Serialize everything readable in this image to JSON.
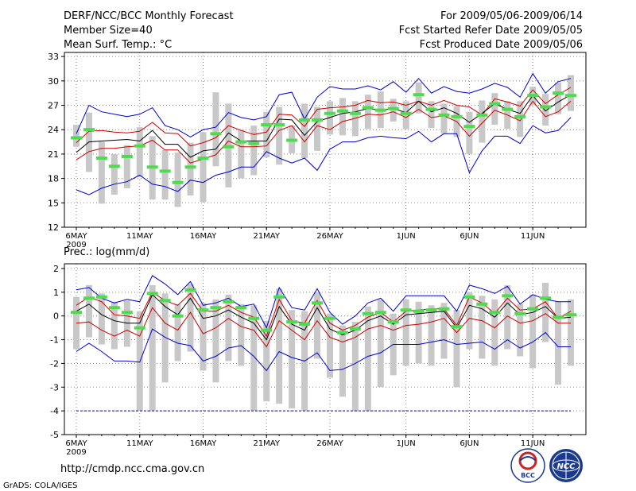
{
  "header": {
    "title": "DERF/NCC/BCC Monthly Forecast",
    "member_size": "Member Size=40",
    "variable": "Mean Surf. Temp.: °C",
    "period": "For 2009/05/06-2009/06/14",
    "started": "Fcst Started Refer Date 2009/05/05",
    "produced": "Fcst Produced Date 2009/05/06"
  },
  "footer": {
    "url": "http://cmdp.ncc.cma.gov.cn",
    "grads": "GrADS: COLA/IGES",
    "logo_bcc": "BCC",
    "logo_ncc": "NCC"
  },
  "colors": {
    "box": "#c8c8c8",
    "median": "#4ddc4d",
    "mean": "#000000",
    "sigma": "#cc0000",
    "extreme": "#0000cc",
    "grid": "#888888"
  },
  "chart_data": [
    {
      "type": "line",
      "title": "Mean Surf. Temp.: °C",
      "xlabel": "",
      "ylabel": "°C",
      "ylim": [
        12,
        33.5
      ],
      "yticks": [
        12,
        15,
        18,
        21,
        24,
        27,
        30,
        33
      ],
      "xtick_labels": [
        "6MAY",
        "11MAY",
        "16MAY",
        "21MAY",
        "26MAY",
        "1JUN",
        "6JUN",
        "11JUN"
      ],
      "xtick_days": [
        0,
        5,
        10,
        15,
        20,
        26,
        31,
        36
      ],
      "year_label": "2009",
      "series": [
        {
          "name": "max",
          "values": [
            16.6,
            16.0,
            16.8,
            17.3,
            17.6,
            18.4,
            17.3,
            17.0,
            16.4,
            17.8,
            17.5,
            18.4,
            18.8,
            19.4,
            19.4,
            21.3,
            20.5,
            19.9,
            20.5,
            19.0,
            21.6,
            22.5,
            22.5,
            23.0,
            23.2,
            23.0,
            22.9,
            23.8,
            22.5,
            23.5,
            23.5,
            18.7,
            21.4,
            23.2,
            23.2,
            22.3,
            24.5,
            23.6,
            23.9,
            25.5
          ]
        },
        {
          "name": "max_sigma_upper",
          "values": [
            22.4,
            23.8,
            23.9,
            23.7,
            23.6,
            23.8,
            24.9,
            23.6,
            23.5,
            22.0,
            22.4,
            23.0,
            24.5,
            23.9,
            23.4,
            23.7,
            25.9,
            25.8,
            24.4,
            26.5,
            26.7,
            26.8,
            27.0,
            27.6,
            27.3,
            27.4,
            27.0,
            27.5,
            27.0,
            27.6,
            27.0,
            26.8,
            25.8,
            27.8,
            27.4,
            26.9,
            28.9,
            27.2,
            28.3,
            29.2
          ]
        },
        {
          "name": "mean",
          "values": [
            21.2,
            22.5,
            22.6,
            22.7,
            22.8,
            22.6,
            23.9,
            22.2,
            22.2,
            20.6,
            21.4,
            21.6,
            23.6,
            22.6,
            22.6,
            22.6,
            25.3,
            25.2,
            23.3,
            25.0,
            25.5,
            26.0,
            26.2,
            26.6,
            26.4,
            26.6,
            26.1,
            27.5,
            26.2,
            26.7,
            26.0,
            24.9,
            26.0,
            27.2,
            26.5,
            26.0,
            28.2,
            26.3,
            27.4,
            28.3
          ]
        },
        {
          "name": "min_sigma_lower",
          "values": [
            20.3,
            21.3,
            21.7,
            21.7,
            21.9,
            22.0,
            22.7,
            21.5,
            21.5,
            19.9,
            20.4,
            20.9,
            22.6,
            21.9,
            21.9,
            22.0,
            23.9,
            24.5,
            22.5,
            24.5,
            24.0,
            25.0,
            25.4,
            25.9,
            25.8,
            26.2,
            25.5,
            26.5,
            25.5,
            25.7,
            25.0,
            23.2,
            24.8,
            26.4,
            25.8,
            25.1,
            27.5,
            25.6,
            26.2,
            27.5
          ]
        },
        {
          "name": "min_extreme",
          "values": [
            16.6,
            16.0,
            16.8,
            17.3,
            17.6,
            18.4,
            17.3,
            17.0,
            16.4,
            17.8,
            17.5,
            18.4,
            18.8,
            19.4,
            19.4,
            21.3,
            20.5,
            19.9,
            20.5,
            19.0,
            21.6,
            22.5,
            22.5,
            23.0,
            23.2,
            23.0,
            22.9,
            23.8,
            22.5,
            23.5,
            23.5,
            18.7,
            21.4,
            23.2,
            23.2,
            22.3,
            24.5,
            23.6,
            23.9,
            25.5
          ]
        },
        {
          "name": "max_extreme",
          "values": [
            23.5,
            27.0,
            26.2,
            25.9,
            25.6,
            25.9,
            26.7,
            24.5,
            24.0,
            23.1,
            24.0,
            24.3,
            26.1,
            25.5,
            25.2,
            25.6,
            28.3,
            28.6,
            25.3,
            28.0,
            29.3,
            29.0,
            29.0,
            29.4,
            28.9,
            29.9,
            28.6,
            30.3,
            28.5,
            29.3,
            28.7,
            28.5,
            29.0,
            29.7,
            29.2,
            28.0,
            30.9,
            28.5,
            29.9,
            30.3
          ]
        },
        {
          "name": "median",
          "values": [
            23.0,
            24.0,
            20.5,
            19.5,
            20.7,
            22.0,
            19.4,
            18.9,
            17.5,
            19.4,
            20.5,
            23.5,
            21.9,
            22.5,
            22.3,
            24.6,
            24.6,
            22.7,
            25.2,
            25.2,
            26.0,
            26.3,
            26.0,
            26.7,
            26.4,
            26.6,
            26.0,
            28.3,
            26.5,
            25.8,
            25.6,
            24.4,
            25.8,
            27.2,
            26.5,
            25.6,
            28.2,
            26.8,
            28.5,
            28.2
          ]
        },
        {
          "name": "box_low",
          "values": [
            21.9,
            18.8,
            14.9,
            16.0,
            16.8,
            18.2,
            15.4,
            15.4,
            14.5,
            15.9,
            15.1,
            19.5,
            16.9,
            18.0,
            18.4,
            20.6,
            19.7,
            21.1,
            20.5,
            21.4,
            23.4,
            23.3,
            23.2,
            24.1,
            24.2,
            25.0,
            24.1,
            26.0,
            24.2,
            23.5,
            23.1,
            21.0,
            22.4,
            24.6,
            24.1,
            23.1,
            27.0,
            24.5,
            25.9,
            26.3
          ]
        },
        {
          "name": "box_high",
          "values": [
            24.6,
            26.1,
            22.5,
            21.0,
            22.1,
            24.3,
            23.2,
            21.5,
            21.2,
            22.4,
            23.7,
            28.6,
            27.2,
            24.0,
            24.5,
            26.2,
            26.8,
            24.5,
            27.2,
            26.8,
            27.5,
            27.9,
            27.5,
            28.3,
            28.7,
            27.8,
            27.5,
            29.8,
            27.5,
            27.2,
            26.9,
            26.2,
            27.6,
            28.5,
            27.5,
            27.5,
            29.3,
            28.4,
            29.8,
            30.7
          ]
        }
      ]
    },
    {
      "type": "line",
      "title": "Prec.: log(mm/d)",
      "xlabel": "",
      "ylabel": "log(mm/d)",
      "ylim": [
        -5,
        2.2
      ],
      "yticks": [
        -5,
        -4,
        -3,
        -2,
        -1,
        0,
        1,
        2
      ],
      "xtick_labels": [
        "6MAY",
        "11MAY",
        "16MAY",
        "21MAY",
        "26MAY",
        "1JUN",
        "6JUN",
        "11JUN"
      ],
      "xtick_days": [
        0,
        5,
        10,
        15,
        20,
        26,
        31,
        36
      ],
      "year_label": "2009",
      "series": [
        {
          "name": "max_extreme",
          "values": [
            1.1,
            1.2,
            0.75,
            0.55,
            0.7,
            0.6,
            1.7,
            1.35,
            0.9,
            1.45,
            0.45,
            0.55,
            0.75,
            0.4,
            0.5,
            -0.5,
            1.2,
            0.35,
            0.25,
            1.15,
            0.15,
            -0.35,
            0.0,
            0.55,
            0.75,
            0.2,
            0.85,
            0.85,
            0.85,
            0.85,
            0.2,
            1.3,
            1.15,
            0.95,
            1.25,
            0.5,
            0.9,
            0.7,
            0.6,
            0.6
          ]
        },
        {
          "name": "sigma_upper",
          "values": [
            0.45,
            0.8,
            0.6,
            0.05,
            0.0,
            -0.1,
            1.0,
            0.65,
            0.45,
            0.95,
            0.2,
            0.2,
            0.45,
            0.15,
            -0.05,
            -0.85,
            0.7,
            -0.2,
            -0.3,
            0.65,
            -0.3,
            -0.6,
            -0.4,
            -0.05,
            0.15,
            -0.25,
            0.2,
            0.25,
            0.3,
            0.3,
            -0.4,
            0.8,
            0.55,
            0.1,
            0.75,
            0.25,
            0.3,
            0.6,
            -0.1,
            0.2
          ]
        },
        {
          "name": "mean",
          "values": [
            0.2,
            0.5,
            0.05,
            -0.2,
            -0.3,
            -0.3,
            0.9,
            0.4,
            0.05,
            0.75,
            -0.1,
            0.0,
            0.25,
            -0.05,
            -0.3,
            -1.0,
            0.4,
            -0.35,
            -0.6,
            0.35,
            -0.55,
            -0.8,
            -0.6,
            -0.2,
            0.0,
            -0.35,
            0.05,
            0.1,
            0.15,
            0.2,
            -0.5,
            0.45,
            0.3,
            -0.05,
            0.55,
            0.05,
            0.15,
            0.4,
            -0.1,
            -0.05
          ]
        },
        {
          "name": "sigma_lower",
          "values": [
            -0.3,
            -0.25,
            -0.6,
            -0.85,
            -0.6,
            -0.85,
            0.35,
            -0.3,
            -0.6,
            0.15,
            -0.75,
            -0.5,
            -0.1,
            -0.45,
            -0.6,
            -1.3,
            -0.2,
            -0.6,
            -1.0,
            -0.2,
            -0.9,
            -1.1,
            -0.9,
            -0.55,
            -0.4,
            -0.6,
            -0.4,
            -0.35,
            -0.25,
            -0.1,
            -0.7,
            -0.1,
            -0.2,
            -0.5,
            0.0,
            -0.3,
            -0.2,
            0.1,
            -0.3,
            -0.3
          ]
        },
        {
          "name": "min_extreme",
          "values": [
            -1.5,
            -1.15,
            -1.5,
            -1.9,
            -1.9,
            -1.95,
            -0.55,
            -0.9,
            -1.15,
            -1.25,
            -1.9,
            -1.7,
            -1.35,
            -1.25,
            -1.7,
            -2.3,
            -1.5,
            -1.75,
            -1.9,
            -1.55,
            -2.3,
            -2.25,
            -2.0,
            -1.7,
            -1.55,
            -1.2,
            -1.2,
            -1.2,
            -1.1,
            -1.0,
            -1.2,
            -1.15,
            -1.1,
            -1.4,
            -1.0,
            -1.35,
            -1.1,
            -0.7,
            -1.3,
            -1.3
          ]
        },
        {
          "name": "median",
          "values": [
            0.15,
            0.75,
            0.8,
            0.35,
            0.15,
            -0.5,
            0.95,
            0.65,
            0.0,
            1.1,
            0.25,
            0.35,
            0.6,
            0.35,
            -0.1,
            -0.6,
            0.8,
            -0.25,
            -0.35,
            0.55,
            -0.1,
            -0.7,
            -0.55,
            0.1,
            0.15,
            -0.25,
            0.25,
            0.2,
            0.25,
            0.3,
            -0.45,
            0.8,
            0.5,
            0.15,
            0.85,
            0.1,
            0.3,
            0.75,
            -0.05,
            0.05
          ]
        },
        {
          "name": "box_low",
          "values": [
            -1.4,
            -0.9,
            -1.2,
            -1.4,
            -1.3,
            -4.0,
            -4.0,
            -2.8,
            -1.9,
            -1.5,
            -2.3,
            -2.8,
            -1.9,
            -2.1,
            -4.0,
            -3.6,
            -3.7,
            -3.9,
            -4.0,
            -1.8,
            -2.6,
            -3.4,
            -4.0,
            -4.0,
            -3.0,
            -2.5,
            -2.1,
            -2.0,
            -2.1,
            -1.8,
            -3.0,
            -1.4,
            -1.8,
            -2.1,
            -1.4,
            -1.7,
            -2.2,
            -1.1,
            -2.9,
            -2.1
          ]
        },
        {
          "name": "box_high",
          "values": [
            0.8,
            1.3,
            0.95,
            0.6,
            0.65,
            0.2,
            1.3,
            0.95,
            0.5,
            1.35,
            0.55,
            0.7,
            0.9,
            0.5,
            0.45,
            -0.2,
            1.15,
            0.25,
            0.2,
            1.0,
            0.1,
            -0.4,
            -0.25,
            0.4,
            0.7,
            0.1,
            0.7,
            0.6,
            0.45,
            0.55,
            0.25,
            1.0,
            0.85,
            0.7,
            1.3,
            0.5,
            0.9,
            1.4,
            0.6,
            0.7
          ]
        }
      ]
    }
  ]
}
